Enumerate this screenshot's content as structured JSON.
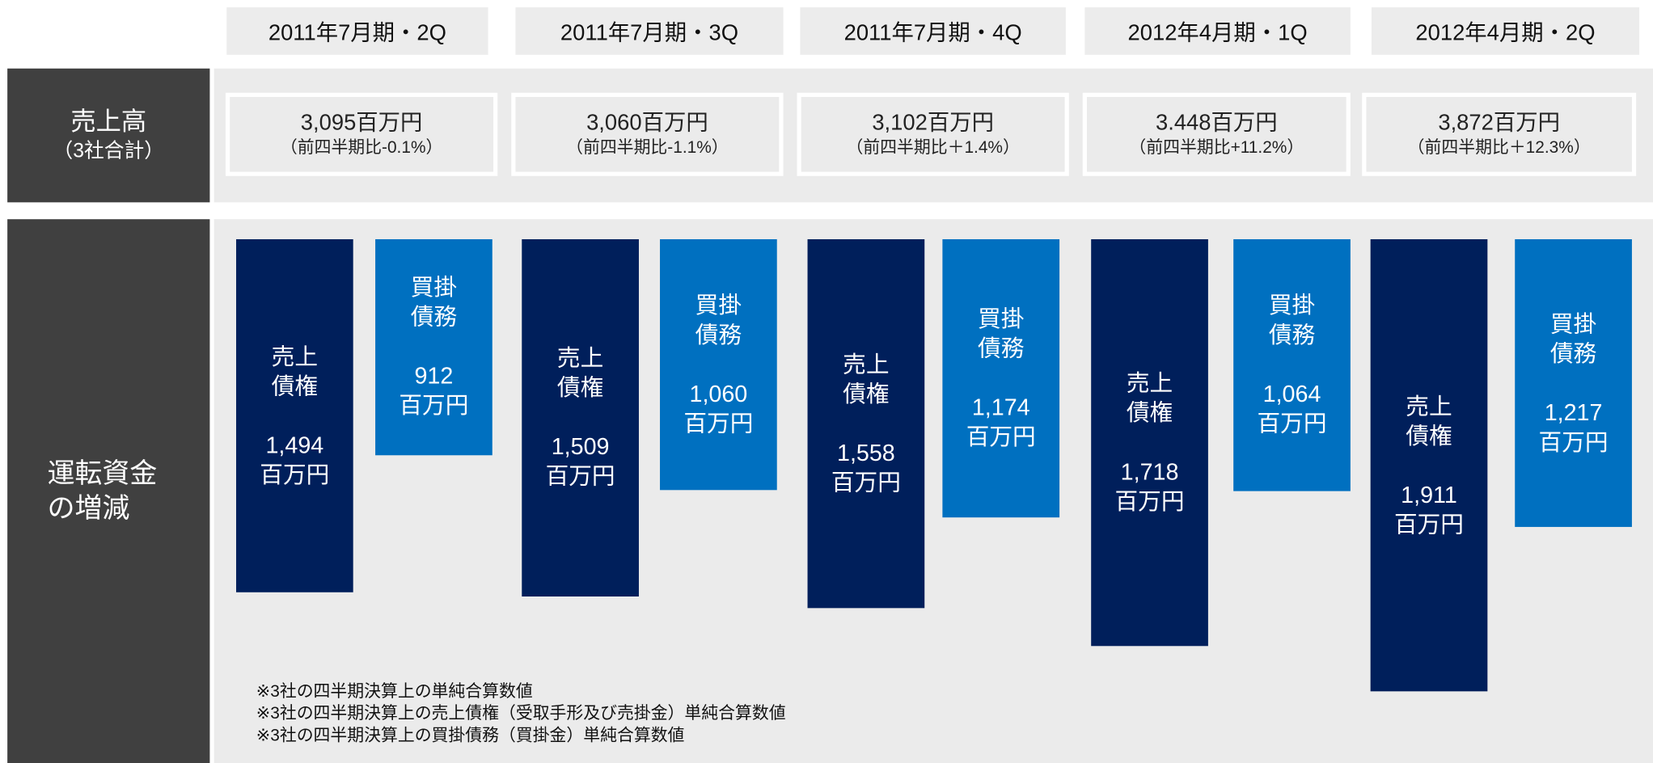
{
  "chart_data": {
    "type": "bar",
    "row_labels": {
      "sales": "売上高",
      "sales_sub": "（3社合計）",
      "wc": "運転資金の増減"
    },
    "categories": [
      "2011年7月期・2Q",
      "2011年7月期・3Q",
      "2011年7月期・4Q",
      "2012年4月期・1Q",
      "2012年4月期・2Q"
    ],
    "sales": [
      {
        "label": "3,095百万円",
        "change": "（前四半期比-0.1%）"
      },
      {
        "label": "3,060百万円",
        "change": "（前四半期比-1.1%）"
      },
      {
        "label": "3,102百万円",
        "change": "（前四半期比＋1.4%）"
      },
      {
        "label": "3.448百万円",
        "change": "（前四半期比+11.2%）"
      },
      {
        "label": "3,872百万円",
        "change": "（前四半期比＋12.3%）"
      }
    ],
    "unit": "百万円",
    "series": [
      {
        "name": "売上債権",
        "color": "#001f5b",
        "values": [
          1494,
          1509,
          1558,
          1718,
          1911
        ],
        "value_labels": [
          "1,494",
          "1,509",
          "1,558",
          "1,718",
          "1,911"
        ]
      },
      {
        "name": "買掛債務",
        "color": "#0070c0",
        "values": [
          912,
          1060,
          1174,
          1064,
          1217
        ],
        "value_labels": [
          "912",
          "1,060",
          "1,174",
          "1,064",
          "1,217"
        ]
      }
    ],
    "ylim": [
      0,
      2000
    ],
    "notes": [
      "※3社の四半期決算上の単純合算数値",
      "※3社の四半期決算上の売上債権（受取手形及び売掛金）単純合算数値",
      "※3社の四半期決算上の買掛債務（買掛金）単純合算数値"
    ]
  }
}
